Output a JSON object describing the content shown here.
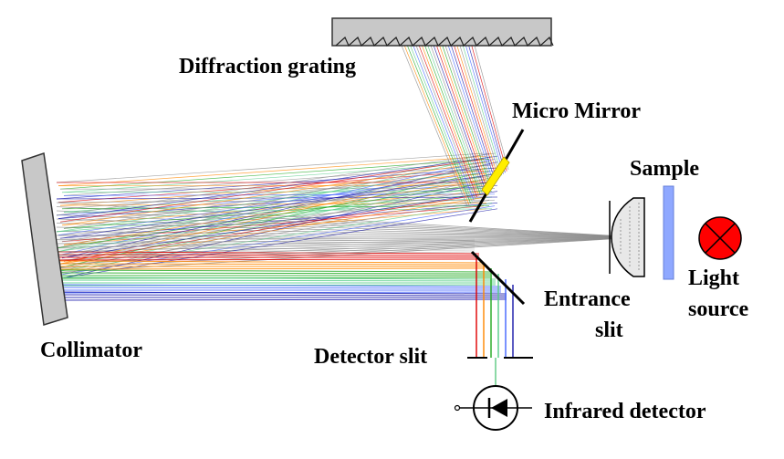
{
  "labels": {
    "diffraction_grating": "Diffraction grating",
    "micro_mirror": "Micro Mirror",
    "sample": "Sample",
    "light_source_line1": "Light",
    "light_source_line2": "source",
    "entrance_slit_line1": "Entrance",
    "entrance_slit_line2": "slit",
    "collimator": "Collimator",
    "detector_slit": "Detector slit",
    "infrared_detector": "Infrared detector"
  },
  "colors": {
    "component_fill": "#c8c8c8",
    "light_source": "#ff0000",
    "sample": "#6a8cff",
    "micro_mirror_highlight": "#ffee00",
    "ray_gray": "#8a8a8a",
    "spectrum": [
      "#e00000",
      "#ff8800",
      "#22aa22",
      "#55cc88",
      "#4466ff",
      "#1a1aaa"
    ]
  }
}
